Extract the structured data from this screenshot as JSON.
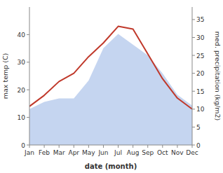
{
  "chart_data": {
    "type": "line",
    "categories": [
      "Jan",
      "Feb",
      "Mar",
      "Apr",
      "May",
      "Jun",
      "Jul",
      "Aug",
      "Sep",
      "Oct",
      "Nov",
      "Dec"
    ],
    "series": [
      {
        "type": "line",
        "color": "#c0392b",
        "values": [
          14,
          18,
          23,
          26,
          32,
          37,
          43,
          42,
          33,
          24,
          17,
          13
        ]
      },
      {
        "type": "area",
        "color": "#c5d5f0",
        "axis": "y2",
        "values": [
          10,
          12,
          13,
          13,
          18,
          27,
          31,
          28,
          25,
          20,
          14,
          11
        ]
      }
    ],
    "xlabel": "date (month)",
    "ylabel": "max temp (C)",
    "y2label": "med. precipitation (kg/m2)",
    "ylim": [
      0,
      50
    ],
    "yticks": [
      0,
      10,
      20,
      30,
      40
    ],
    "y2lim": [
      0,
      38.5
    ],
    "y2ticks": [
      0,
      5,
      10,
      15,
      20,
      25,
      30,
      35
    ],
    "grid": false
  }
}
